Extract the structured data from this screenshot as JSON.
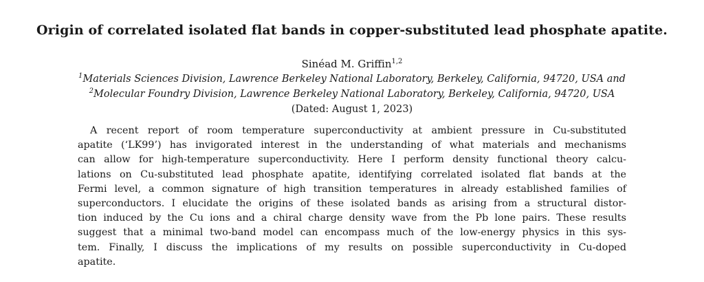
{
  "paper": {
    "title": "Origin of correlated isolated flat bands in copper-substituted lead phosphate apatite.",
    "author": {
      "name": "Sinéad M. Griffin",
      "affiliation_marks": "1,2"
    },
    "affiliations": [
      {
        "mark": "1",
        "text": "Materials Sciences Division, Lawrence Berkeley National Laboratory, Berkeley, California, 94720, USA and"
      },
      {
        "mark": "2",
        "text": "Molecular Foundry Division, Lawrence Berkeley National Laboratory, Berkeley, California, 94720, USA"
      }
    ],
    "dated": "(Dated: August 1, 2023)",
    "abstract_lines": [
      "A recent report of room temperature superconductivity at ambient pressure in Cu-substituted",
      "apatite (‘LK99’) has invigorated interest in the understanding of what materials and mechanisms",
      "can allow for high-temperature superconductivity. Here I perform density functional theory calcu-",
      "lations on Cu-substituted lead phosphate apatite, identifying correlated isolated flat bands at the",
      "Fermi level, a common signature of high transition temperatures in already established families of",
      "superconductors. I elucidate the origins of these isolated bands as arising from a structural distor-",
      "tion induced by the Cu ions and a chiral charge density wave from the Pb lone pairs. These results",
      "suggest that a minimal two-band model can encompass much of the low-energy physics in this sys-",
      "tem. Finally, I discuss the implications of my results on possible superconductivity in Cu-doped",
      "apatite."
    ]
  }
}
